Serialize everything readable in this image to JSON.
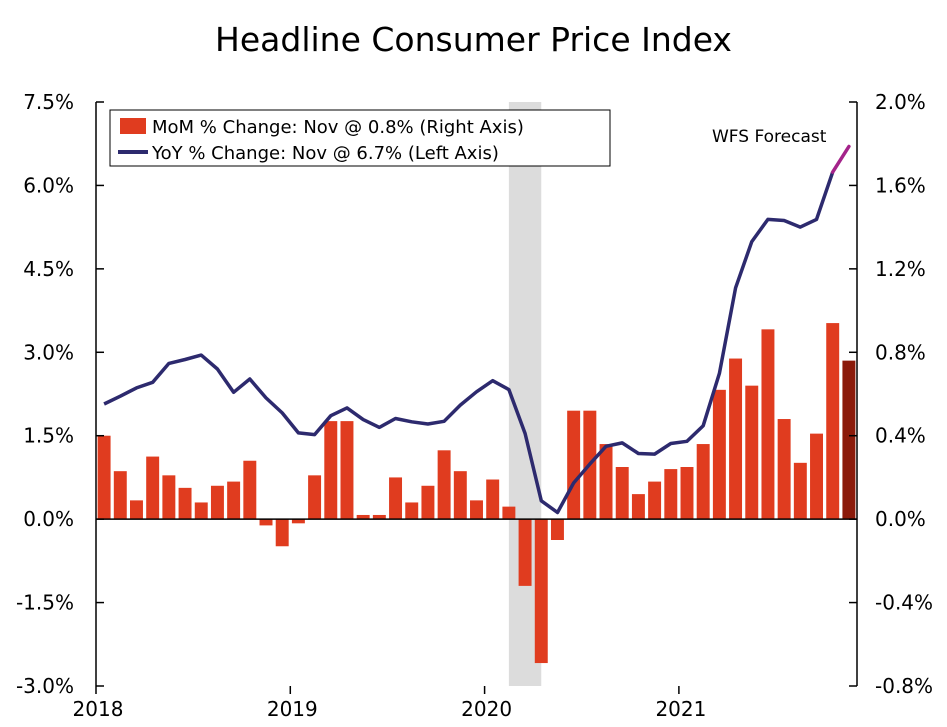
{
  "chart_data": {
    "type": "bar+line",
    "title": "Headline Consumer Price Index",
    "left_axis": {
      "min": -3.0,
      "max": 7.5,
      "ticks": [
        "7.5%",
        "6.0%",
        "4.5%",
        "3.0%",
        "1.5%",
        "0.0%",
        "-1.5%",
        "-3.0%"
      ],
      "tick_values": [
        7.5,
        6.0,
        4.5,
        3.0,
        1.5,
        0.0,
        -1.5,
        -3.0
      ]
    },
    "right_axis": {
      "min": -0.8,
      "max": 2.0,
      "ticks": [
        "2.0%",
        "1.6%",
        "1.2%",
        "0.8%",
        "0.4%",
        "0.0%",
        "-0.4%",
        "-0.8%"
      ],
      "tick_values": [
        2.0,
        1.6,
        1.2,
        0.8,
        0.4,
        0.0,
        -0.4,
        -0.8
      ]
    },
    "x_labels": [
      "2018",
      "2019",
      "2020",
      "2021"
    ],
    "x_label_month_index": [
      0,
      12,
      24,
      36
    ],
    "recession_shading": {
      "start_index": 25.5,
      "end_index": 27.5
    },
    "bar_series": {
      "name": "MoM % Change: Nov @ 0.8% (Right Axis)",
      "axis": "right",
      "color": "#e03c1f",
      "forecast_color": "#8b1a0a",
      "values": [
        0.4,
        0.23,
        0.09,
        0.3,
        0.21,
        0.15,
        0.08,
        0.16,
        0.18,
        0.28,
        -0.03,
        -0.13,
        -0.02,
        0.21,
        0.47,
        0.47,
        0.02,
        0.02,
        0.2,
        0.08,
        0.16,
        0.33,
        0.23,
        0.09,
        0.19,
        0.06,
        -0.32,
        -0.69,
        -0.1,
        0.52,
        0.52,
        0.36,
        0.25,
        0.12,
        0.18,
        0.24,
        0.25,
        0.36,
        0.62,
        0.77,
        0.64,
        0.91,
        0.48,
        0.27,
        0.41,
        0.94,
        0.76
      ],
      "forecast_from_index": 46
    },
    "line_series": {
      "name": "YoY % Change: Nov @ 6.7% (Left Axis)",
      "axis": "left",
      "color": "#2d2a6e",
      "forecast_color": "#a4238a",
      "values": [
        2.07,
        2.21,
        2.36,
        2.46,
        2.8,
        2.87,
        2.95,
        2.7,
        2.28,
        2.52,
        2.18,
        1.91,
        1.55,
        1.52,
        1.86,
        2.0,
        1.79,
        1.65,
        1.81,
        1.75,
        1.71,
        1.76,
        2.05,
        2.29,
        2.49,
        2.33,
        1.54,
        0.33,
        0.12,
        0.65,
        0.99,
        1.31,
        1.37,
        1.18,
        1.17,
        1.36,
        1.4,
        1.68,
        2.62,
        4.16,
        4.99,
        5.39,
        5.37,
        5.25,
        5.39,
        6.24,
        6.7
      ],
      "forecast_from_index": 45
    },
    "annotation": "WFS Forecast"
  }
}
